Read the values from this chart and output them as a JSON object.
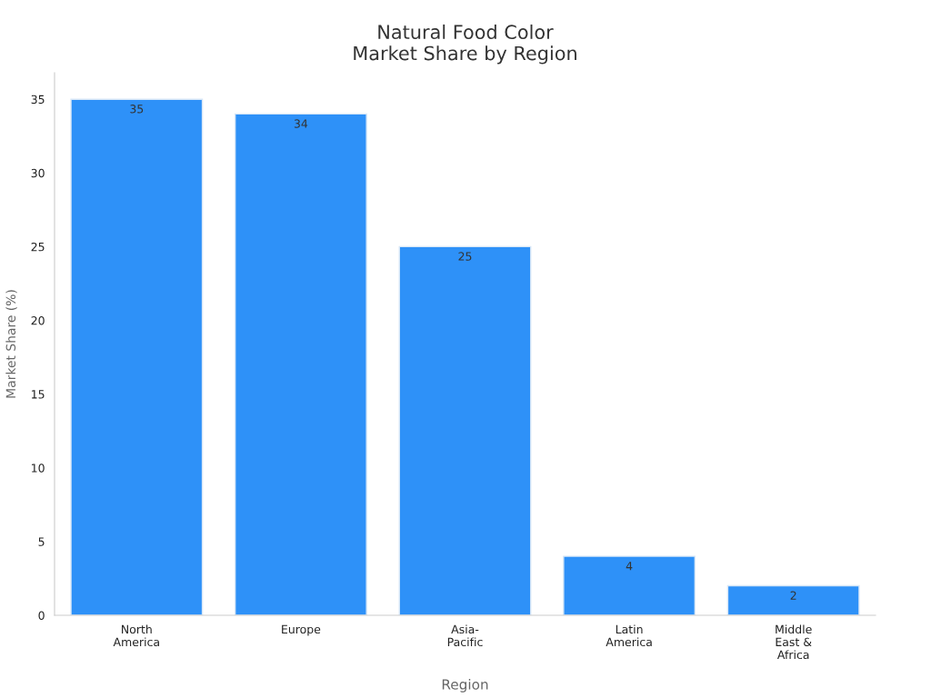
{
  "chart_data": {
    "type": "bar",
    "title": "Natural Food Color\nMarket Share by Region",
    "xlabel": "Region",
    "ylabel": "Market Share (%)",
    "categories": [
      "North\nAmerica",
      "Europe",
      "Asia-\nPacific",
      "Latin\nAmerica",
      "Middle\nEast &\nAfrica"
    ],
    "values": [
      35,
      34,
      25,
      4,
      2
    ],
    "color": "#2e91f8",
    "ylim": [
      0,
      36.8
    ],
    "yticks": [
      0,
      5,
      10,
      15,
      20,
      25,
      30,
      35
    ],
    "grid": false,
    "data_labels": true
  }
}
